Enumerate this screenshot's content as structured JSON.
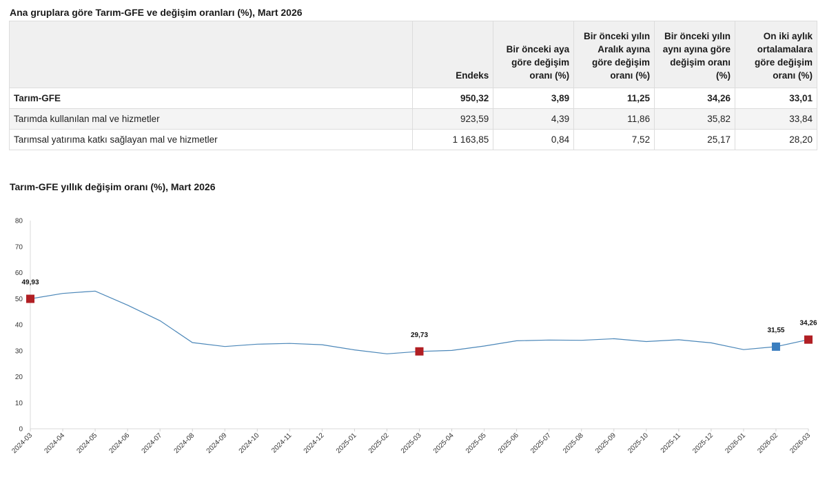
{
  "table": {
    "title": "Ana gruplara göre Tarım-GFE ve değişim oranları (%), Mart 2026",
    "headers": [
      "",
      "Endeks",
      "Bir önceki aya göre değişim oranı (%)",
      "Bir önceki yılın Aralık ayına göre değişim oranı (%)",
      "Bir önceki yılın aynı ayına göre değişim oranı (%)",
      "On iki aylık ortalamalara göre değişim oranı (%)"
    ],
    "rows": [
      [
        "Tarım-GFE",
        "950,32",
        "3,89",
        "11,25",
        "34,26",
        "33,01"
      ],
      [
        "Tarımda kullanılan mal ve hizmetler",
        "923,59",
        "4,39",
        "11,86",
        "35,82",
        "33,84"
      ],
      [
        "Tarımsal yatırıma katkı sağlayan mal ve hizmetler",
        "1 163,85",
        "0,84",
        "7,52",
        "25,17",
        "28,20"
      ]
    ]
  },
  "chart_data": {
    "type": "line",
    "title": "Tarım-GFE yıllık değişim oranı (%), Mart 2026",
    "xlabel": "",
    "ylabel": "",
    "ylim": [
      0,
      80
    ],
    "yticks": [
      "0",
      "10",
      "20",
      "30",
      "40",
      "50",
      "60",
      "70",
      "80"
    ],
    "grid": false,
    "x": [
      "2024-03",
      "2024-04",
      "2024-05",
      "2024-06",
      "2024-07",
      "2024-08",
      "2024-09",
      "2024-10",
      "2024-11",
      "2024-12",
      "2025-01",
      "2025-02",
      "2025-03",
      "2025-04",
      "2025-05",
      "2025-06",
      "2025-07",
      "2025-08",
      "2025-09",
      "2025-10",
      "2025-11",
      "2025-12",
      "2026-01",
      "2026-02",
      "2026-03"
    ],
    "series": [
      {
        "values": [
          49.93,
          52.0,
          52.9,
          47.5,
          41.5,
          33.1,
          31.6,
          32.5,
          32.8,
          32.3,
          30.3,
          28.8,
          29.73,
          30.1,
          31.8,
          33.8,
          34.1,
          34.0,
          34.6,
          33.5,
          34.2,
          33.0,
          30.4,
          31.55,
          34.26
        ],
        "color": "#4a86b8"
      }
    ],
    "markers": [
      {
        "x": "2024-03",
        "value": 49.93,
        "label": "49,93",
        "color": "#b11f24"
      },
      {
        "x": "2025-03",
        "value": 29.73,
        "label": "29,73",
        "color": "#b11f24"
      },
      {
        "x": "2026-02",
        "value": 31.55,
        "label": "31,55",
        "color": "#3a7ebf"
      },
      {
        "x": "2026-03",
        "value": 34.26,
        "label": "34,26",
        "color": "#b11f24"
      }
    ]
  }
}
